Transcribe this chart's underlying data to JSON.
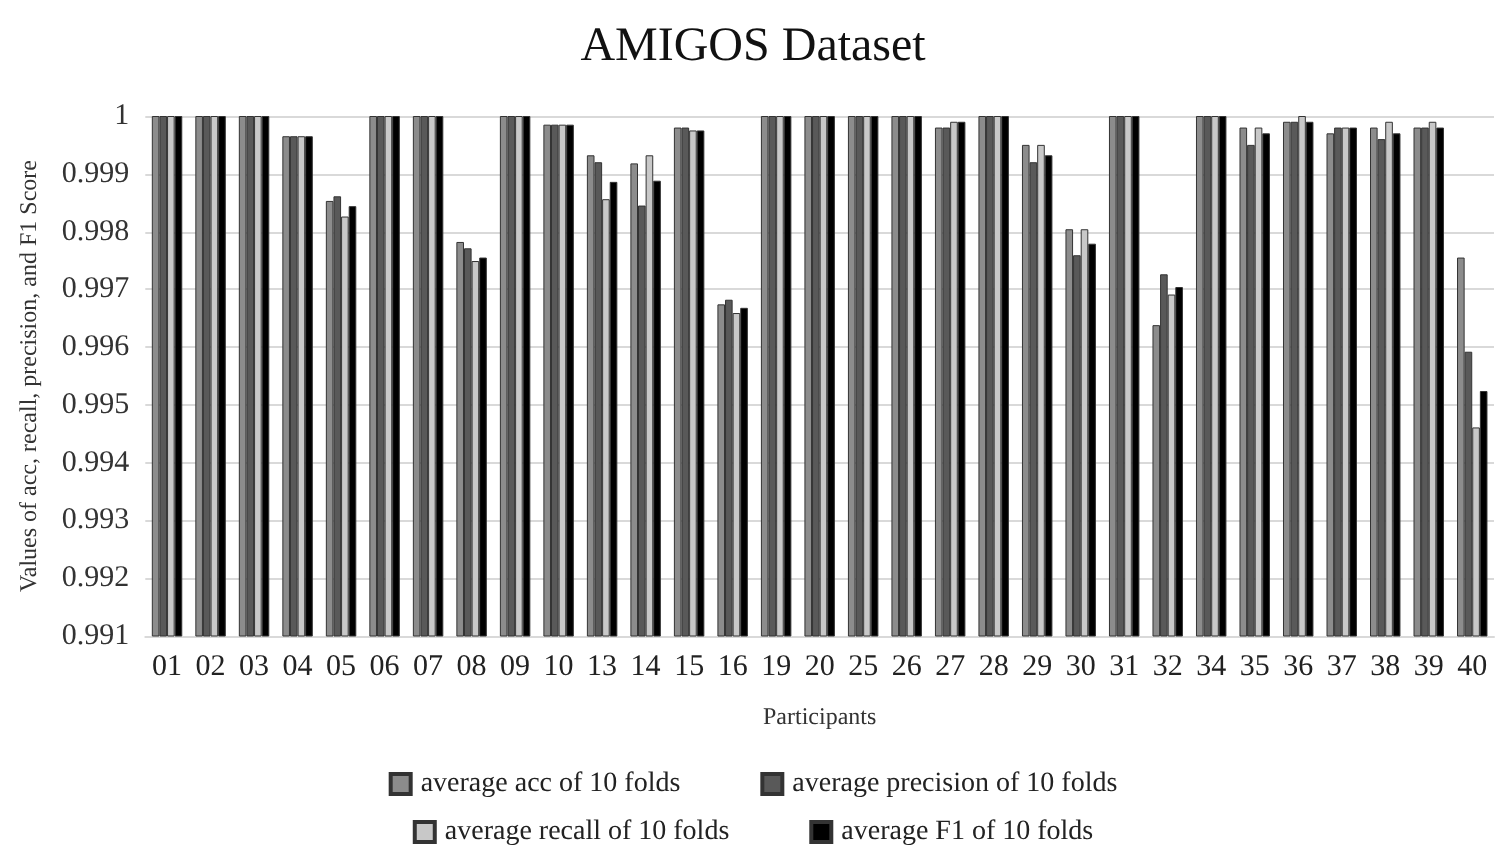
{
  "chart_data": {
    "type": "bar",
    "title": "AMIGOS Dataset",
    "xlabel": "Participants",
    "ylabel": "Values of acc, recall, precision, and F1 Score",
    "categories": [
      "01",
      "02",
      "03",
      "04",
      "05",
      "06",
      "07",
      "08",
      "09",
      "10",
      "13",
      "14",
      "15",
      "16",
      "19",
      "20",
      "25",
      "26",
      "27",
      "28",
      "29",
      "30",
      "31",
      "32",
      "34",
      "35",
      "36",
      "37",
      "38",
      "39",
      "40"
    ],
    "series": [
      {
        "name": "average acc of 10 folds",
        "color": "#8c8c8c",
        "values": [
          1,
          1,
          1,
          0.99965,
          0.99853,
          1,
          1,
          0.99782,
          1,
          0.99985,
          0.99932,
          0.99918,
          0.9998,
          0.99674,
          1,
          1,
          1,
          1,
          0.9998,
          1,
          0.9995,
          0.99804,
          1,
          0.99638,
          1,
          0.9998,
          0.9999,
          0.9997,
          0.9998,
          0.9998,
          0.99755
        ]
      },
      {
        "name": "average precision of 10 folds",
        "color": "#595959",
        "values": [
          1,
          1,
          1,
          0.99965,
          0.99861,
          1,
          1,
          0.99771,
          1,
          0.99985,
          0.9992,
          0.99845,
          0.9998,
          0.99682,
          1,
          1,
          1,
          1,
          0.9998,
          1,
          0.9992,
          0.99759,
          1,
          0.99726,
          1,
          0.9995,
          0.9999,
          0.9998,
          0.9996,
          0.9998,
          0.99592
        ]
      },
      {
        "name": "average recall of 10 folds",
        "color": "#c8c8c8",
        "values": [
          1,
          1,
          1,
          0.99965,
          0.99826,
          1,
          1,
          0.99749,
          1,
          0.99985,
          0.99856,
          0.99932,
          0.99975,
          0.99659,
          1,
          1,
          1,
          1,
          0.9999,
          1,
          0.9995,
          0.99804,
          1,
          0.99691,
          1,
          0.9998,
          1,
          0.9998,
          0.9999,
          0.9999,
          0.99461
        ]
      },
      {
        "name": "average F1 of 10 folds",
        "color": "#000000",
        "values": [
          1,
          1,
          1,
          0.99965,
          0.99844,
          1,
          1,
          0.99755,
          1,
          0.99985,
          0.99886,
          0.99888,
          0.99975,
          0.99668,
          1,
          1,
          1,
          1,
          0.9999,
          1,
          0.99932,
          0.99779,
          1,
          0.99704,
          1,
          0.9997,
          0.9999,
          0.9998,
          0.9997,
          0.9998,
          0.99524
        ]
      }
    ],
    "ylim": [
      0.991,
      1
    ],
    "yticks": [
      0.991,
      0.992,
      0.993,
      0.994,
      0.995,
      0.996,
      0.997,
      0.998,
      0.999,
      1
    ],
    "grid": "y",
    "legend": "bottom"
  }
}
